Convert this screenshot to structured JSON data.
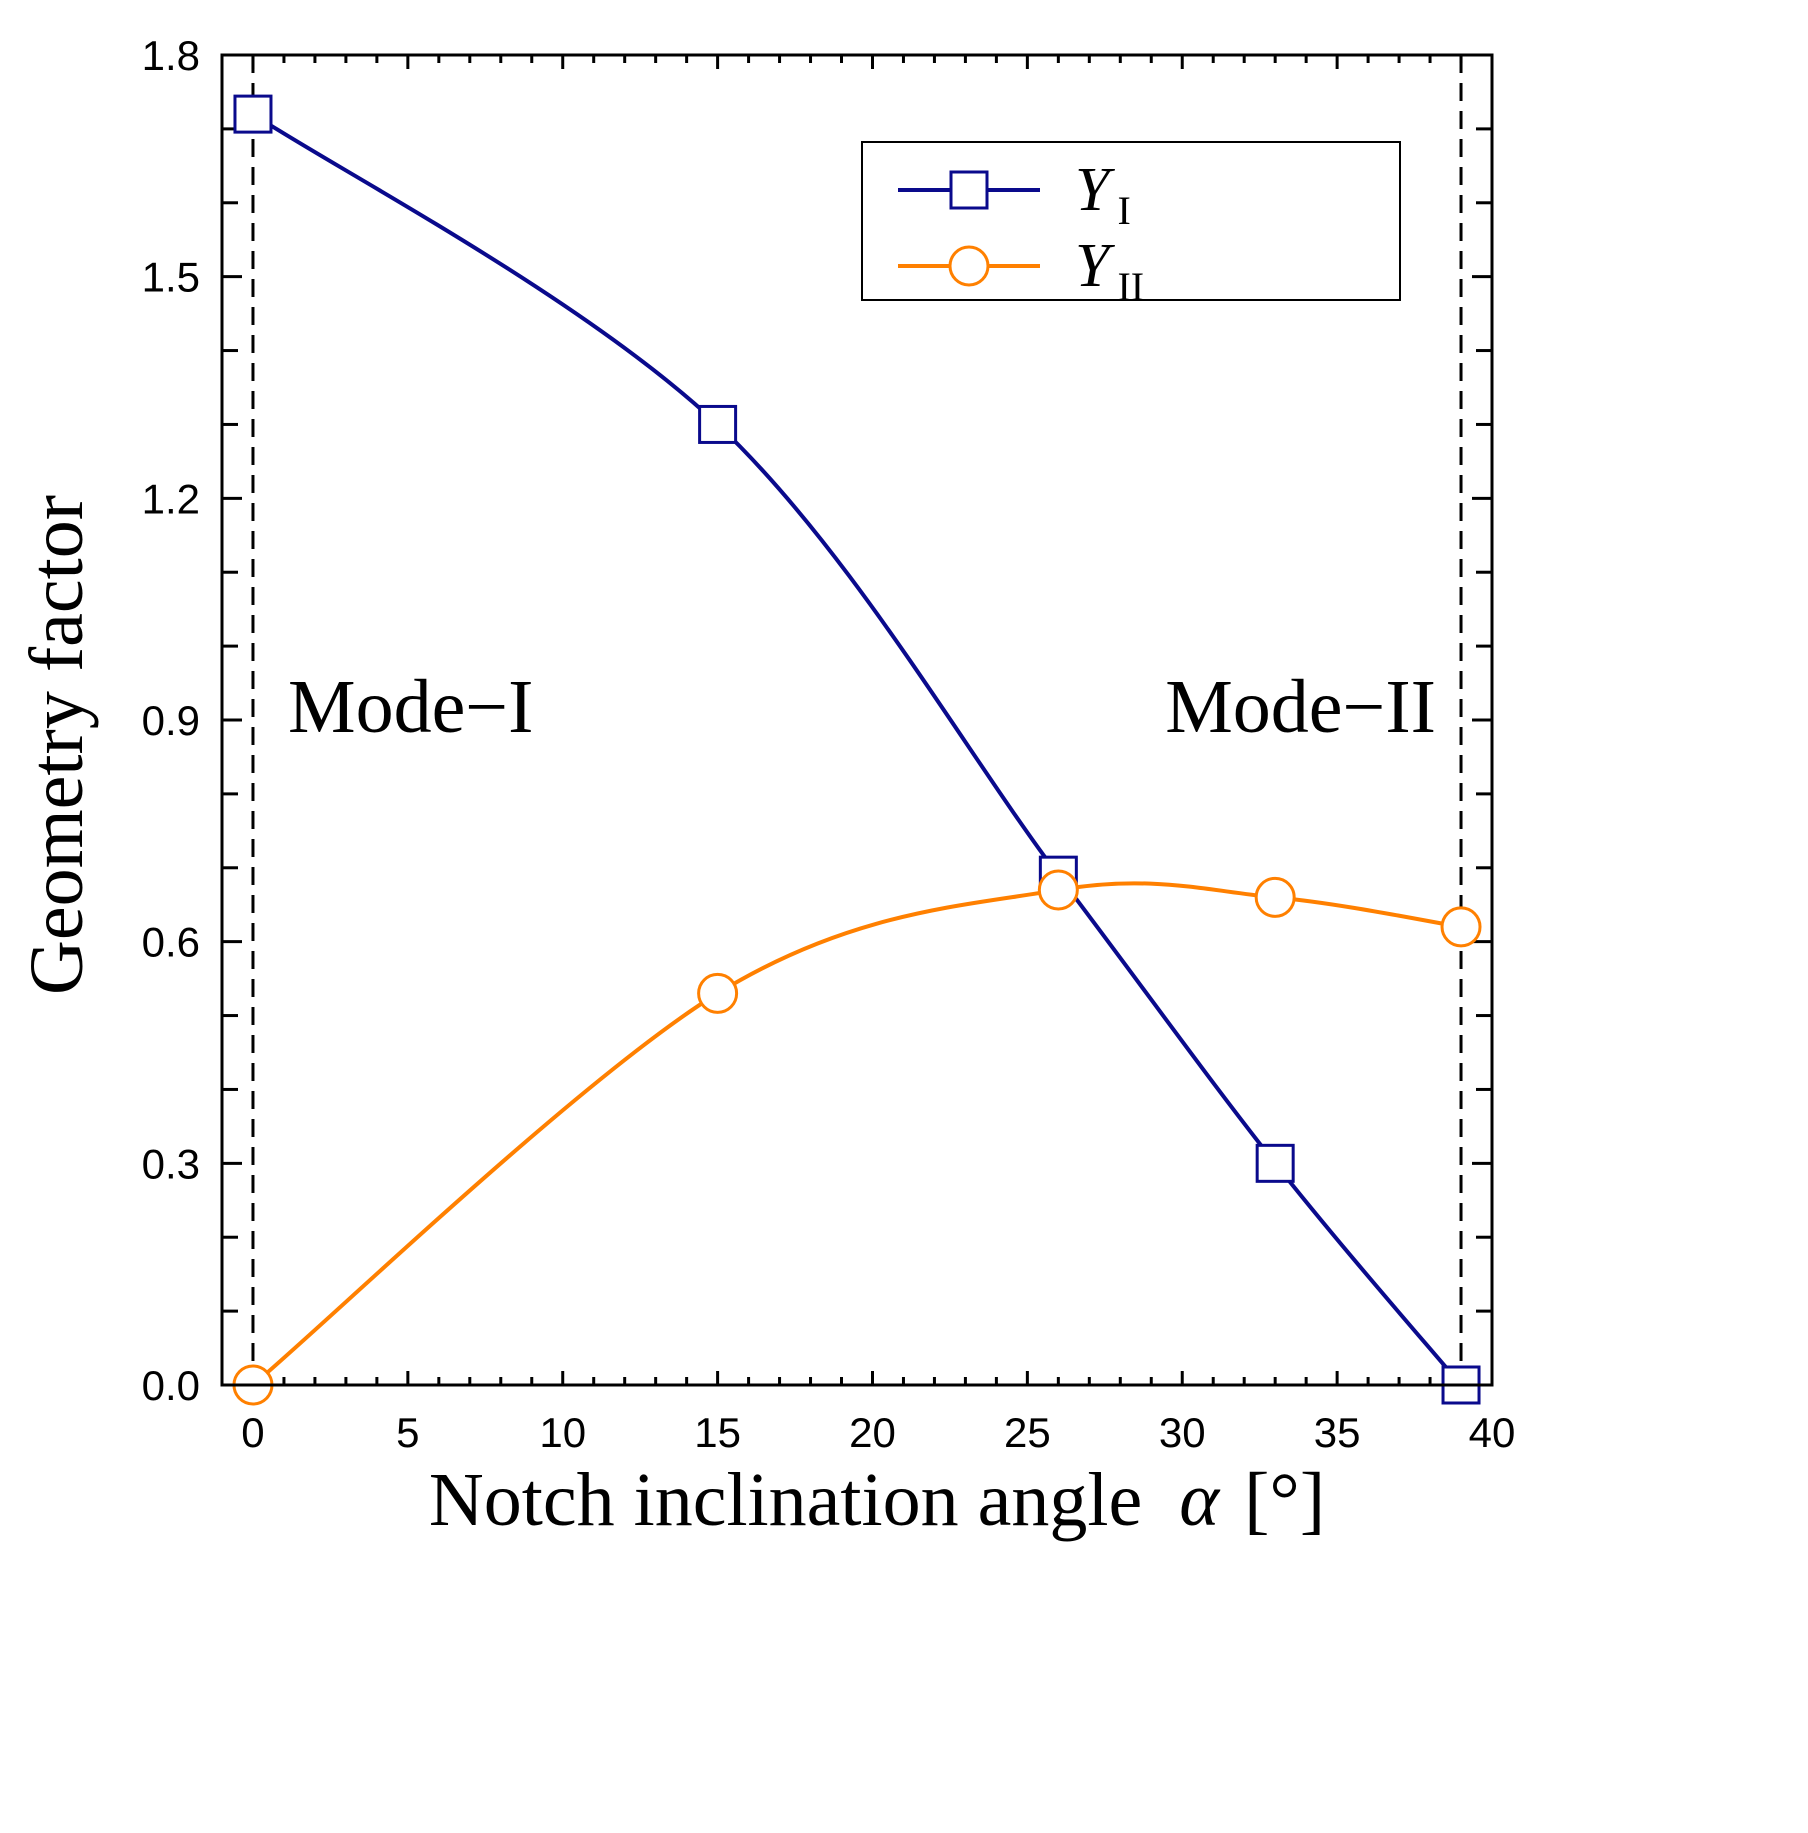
{
  "chart_data": {
    "type": "line",
    "title": "",
    "xlabel": "Notch inclination angle",
    "xlabel_symbol": "α",
    "xlabel_unit": "[°]",
    "ylabel": "Geometry factor",
    "xlim": [
      -1,
      40
    ],
    "ylim": [
      0,
      1.8
    ],
    "xticks": [
      0,
      5,
      10,
      15,
      20,
      25,
      30,
      35,
      40
    ],
    "yticks": [
      0.0,
      0.3,
      0.6,
      0.9,
      1.2,
      1.5,
      1.8
    ],
    "ytick_labels": [
      "0.0",
      "0.3",
      "0.6",
      "0.9",
      "1.2",
      "1.5",
      "1.8"
    ],
    "grid": false,
    "legend_position": "top-right",
    "series": [
      {
        "name": "Y",
        "subscript": "I",
        "marker": "square",
        "color": "#0a0a8c",
        "x": [
          0,
          15,
          26,
          33,
          39
        ],
        "values": [
          1.72,
          1.3,
          0.69,
          0.3,
          0.0
        ]
      },
      {
        "name": "Y",
        "subscript": "II",
        "marker": "circle",
        "color": "#ff8000",
        "x": [
          0,
          15,
          26,
          33,
          39
        ],
        "values": [
          0.0,
          0.53,
          0.67,
          0.66,
          0.62
        ]
      }
    ],
    "reference_lines": [
      0,
      39
    ],
    "annotations": [
      "Mode−I",
      "Mode−II"
    ]
  }
}
